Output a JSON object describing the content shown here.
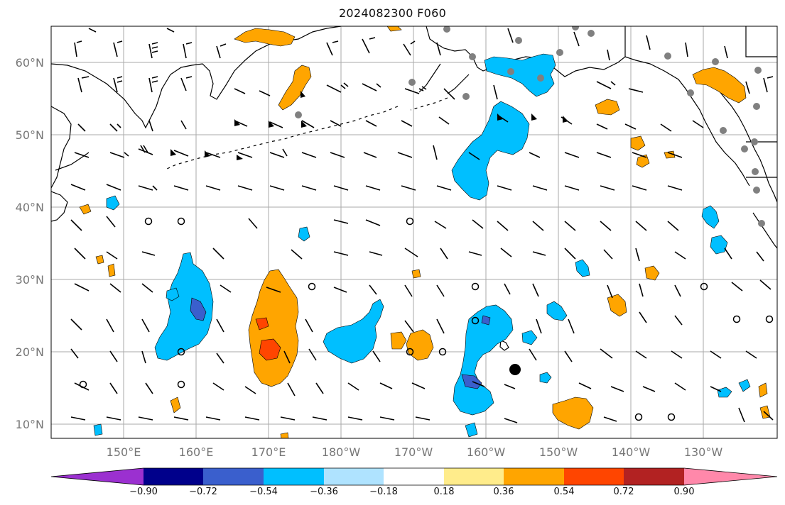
{
  "title": "2024082300 F060",
  "map": {
    "lat_labels": [
      "60°N",
      "50°N",
      "40°N",
      "30°N",
      "20°N",
      "10°N"
    ],
    "lon_labels": [
      "150°E",
      "160°E",
      "170°E",
      "180°W",
      "170°W",
      "160°W",
      "150°W",
      "140°W",
      "130°W"
    ],
    "grid_lines": true
  },
  "colorbar": {
    "tick_labels": [
      "−0.90",
      "−0.72",
      "−0.54",
      "−0.36",
      "−0.18",
      "0.18",
      "0.36",
      "0.54",
      "0.72",
      "0.90"
    ],
    "colors": [
      "#9b30d0",
      "#00008b",
      "#3a5fcd",
      "#00bfff",
      "#afe3ff",
      "#ffffff",
      "#ffec8b",
      "#ffa500",
      "#ff4500",
      "#b22222",
      "#ff88aa"
    ]
  },
  "colors": {
    "land_outline": "#000000",
    "grid": "#999999",
    "barb": "#000000",
    "dot_gray": "#808080"
  }
}
